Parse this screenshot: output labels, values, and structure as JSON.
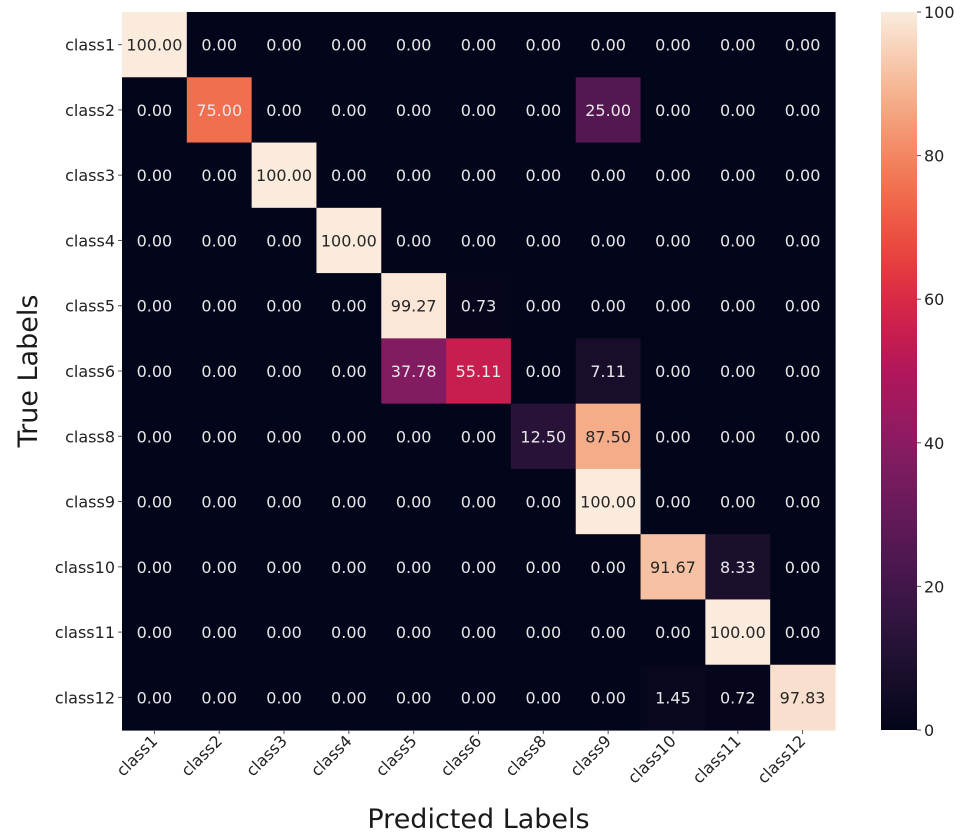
{
  "chart_data": {
    "type": "heatmap",
    "title": "",
    "xlabel": "Predicted Labels",
    "ylabel": "True Labels",
    "x_categories": [
      "class1",
      "class2",
      "class3",
      "class4",
      "class5",
      "class6",
      "class8",
      "class9",
      "class10",
      "class11",
      "class12"
    ],
    "y_categories": [
      "class1",
      "class2",
      "class3",
      "class4",
      "class5",
      "class6",
      "class8",
      "class9",
      "class10",
      "class11",
      "class12"
    ],
    "values": [
      [
        100.0,
        0.0,
        0.0,
        0.0,
        0.0,
        0.0,
        0.0,
        0.0,
        0.0,
        0.0,
        0.0
      ],
      [
        0.0,
        75.0,
        0.0,
        0.0,
        0.0,
        0.0,
        0.0,
        25.0,
        0.0,
        0.0,
        0.0
      ],
      [
        0.0,
        0.0,
        100.0,
        0.0,
        0.0,
        0.0,
        0.0,
        0.0,
        0.0,
        0.0,
        0.0
      ],
      [
        0.0,
        0.0,
        0.0,
        100.0,
        0.0,
        0.0,
        0.0,
        0.0,
        0.0,
        0.0,
        0.0
      ],
      [
        0.0,
        0.0,
        0.0,
        0.0,
        99.27,
        0.73,
        0.0,
        0.0,
        0.0,
        0.0,
        0.0
      ],
      [
        0.0,
        0.0,
        0.0,
        0.0,
        37.78,
        55.11,
        0.0,
        7.11,
        0.0,
        0.0,
        0.0
      ],
      [
        0.0,
        0.0,
        0.0,
        0.0,
        0.0,
        0.0,
        12.5,
        87.5,
        0.0,
        0.0,
        0.0
      ],
      [
        0.0,
        0.0,
        0.0,
        0.0,
        0.0,
        0.0,
        0.0,
        100.0,
        0.0,
        0.0,
        0.0
      ],
      [
        0.0,
        0.0,
        0.0,
        0.0,
        0.0,
        0.0,
        0.0,
        0.0,
        91.67,
        8.33,
        0.0
      ],
      [
        0.0,
        0.0,
        0.0,
        0.0,
        0.0,
        0.0,
        0.0,
        0.0,
        0.0,
        100.0,
        0.0
      ],
      [
        0.0,
        0.0,
        0.0,
        0.0,
        0.0,
        0.0,
        0.0,
        0.0,
        1.45,
        0.72,
        97.83
      ]
    ],
    "value_format_decimals": 2,
    "colorbar": {
      "colormap": "rocket",
      "range": [
        0,
        100
      ],
      "ticks": [
        0,
        20,
        40,
        60,
        80,
        100
      ],
      "tick_labels": [
        "0",
        "20",
        "40",
        "60",
        "80",
        "100"
      ],
      "placement": "right"
    },
    "colors": {
      "low": "#03051a",
      "high": "#faebdd",
      "text_light": "#e8e8e8",
      "text_dark": "#262626"
    },
    "grid": false,
    "x_tick_rotation_deg": 45
  }
}
